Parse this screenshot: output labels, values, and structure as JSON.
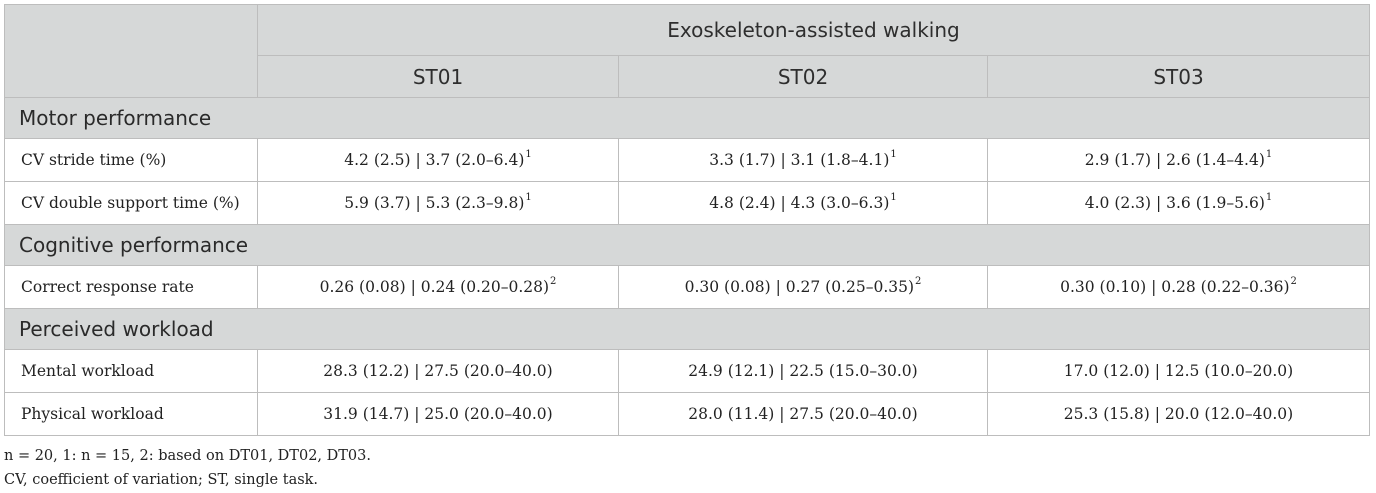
{
  "header": {
    "group_title": "Exoskeleton-assisted walking",
    "columns": [
      "ST01",
      "ST02",
      "ST03"
    ]
  },
  "sections": [
    {
      "title": "Motor performance",
      "rows": [
        {
          "label": "CV stride time (%)",
          "values": [
            "4.2 (2.5) | 3.7 (2.0–6.4)",
            "3.3 (1.7) | 3.1 (1.8–4.1)",
            "2.9 (1.7) | 2.6 (1.4–4.4)"
          ],
          "sup": "1"
        },
        {
          "label": "CV double support time (%)",
          "values": [
            "5.9 (3.7) | 5.3 (2.3–9.8)",
            "4.8 (2.4) | 4.3 (3.0–6.3)",
            "4.0 (2.3) | 3.6 (1.9–5.6)"
          ],
          "sup": "1"
        }
      ]
    },
    {
      "title": "Cognitive performance",
      "rows": [
        {
          "label": "Correct response rate",
          "values": [
            "0.26 (0.08) | 0.24 (0.20–0.28)",
            "0.30 (0.08) | 0.27 (0.25–0.35)",
            "0.30 (0.10) | 0.28 (0.22–0.36)"
          ],
          "sup": "2"
        }
      ]
    },
    {
      "title": "Perceived workload",
      "rows": [
        {
          "label": "Mental workload",
          "values": [
            "28.3 (12.2) | 27.5 (20.0–40.0)",
            "24.9 (12.1) | 22.5 (15.0–30.0)",
            "17.0 (12.0) | 12.5 (10.0–20.0)"
          ],
          "sup": ""
        },
        {
          "label": "Physical workload",
          "values": [
            "31.9 (14.7) | 25.0 (20.0–40.0)",
            "28.0 (11.4) | 27.5 (20.0–40.0)",
            "25.3 (15.8) | 20.0 (12.0–40.0)"
          ],
          "sup": ""
        }
      ]
    }
  ],
  "footnotes": [
    "n = 20, 1: n = 15, 2: based on DT01, DT02, DT03.",
    "CV, coefficient of variation; ST, single task."
  ],
  "colors": {
    "header_bg": "#d6d8d8",
    "border": "#bdbdbd",
    "text": "#222222"
  }
}
